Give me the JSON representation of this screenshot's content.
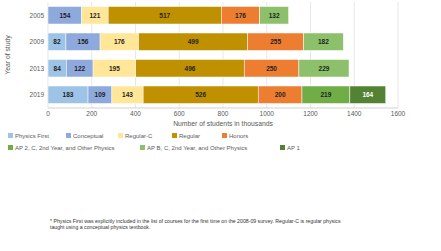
{
  "chart_data": {
    "type": "bar",
    "orientation": "horizontal",
    "stacked": true,
    "data_labels": true,
    "grid": true,
    "legend": "bottom",
    "x_label": "Number of students in thousands",
    "y_label": "Year of study",
    "note": "* Physics First was explicitly included in the list of courses for the first time on the 2008-09 survey. Regular-C is regular physics taught using a conceptual physics textbook.",
    "categories": [
      "2005",
      "2009",
      "2013",
      "2019"
    ],
    "xlim": [
      0,
      1600
    ],
    "xticks": [
      0,
      200,
      400,
      600,
      800,
      1000,
      1200,
      1400,
      1600
    ],
    "series": [
      {
        "name": "Physics First",
        "color": "#9DC3E6",
        "values": [
          null,
          82,
          84,
          183
        ]
      },
      {
        "name": "Conceptual",
        "color": "#8EA9DB",
        "values": [
          154,
          156,
          122,
          109
        ]
      },
      {
        "name": "Regular-C",
        "color": "#FFE699",
        "values": [
          121,
          176,
          195,
          143
        ]
      },
      {
        "name": "Regular",
        "color": "#BF9000",
        "values": [
          517,
          499,
          496,
          526
        ]
      },
      {
        "name": "Honors",
        "color": "#ED7D31",
        "values": [
          176,
          255,
          250,
          200
        ]
      },
      {
        "name": "AP 2, C, 2nd Year, and Other Physics",
        "color": "#70AD47",
        "values": [
          null,
          null,
          null,
          219
        ]
      },
      {
        "name": "AP B, C, 2nd Year, and Other Physics",
        "color": "#8DC06A",
        "values": [
          132,
          182,
          229,
          null
        ]
      },
      {
        "name": "AP 1",
        "color": "#548235",
        "values": [
          null,
          null,
          null,
          164
        ]
      }
    ]
  }
}
